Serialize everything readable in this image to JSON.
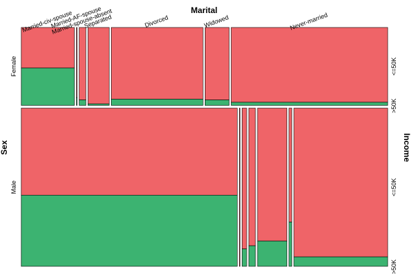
{
  "chart_data": {
    "type": "mosaic",
    "title": "Marital",
    "row_axis_label": "Sex",
    "side_axis_label": "Income",
    "categories": [
      "Married-civ-spouse",
      "Married-AF-spouse",
      "Married-spouse-absent",
      "Separated",
      "Divorced",
      "Widowed",
      "Never-married"
    ],
    "levels": [
      {
        "name": "<=50K",
        "color": "#ef6468"
      },
      {
        "name": ">50K",
        "color": "#3cb371"
      }
    ],
    "rows": [
      {
        "name": "Female",
        "share": 33,
        "marital_share": [
          15.0,
          0.2,
          1.9,
          6.0,
          25.9,
          6.8,
          44.2
        ],
        "high_income_share": [
          48,
          10,
          7,
          2,
          8,
          7,
          4
        ]
      },
      {
        "name": "Male",
        "share": 67,
        "marital_share": [
          61.0,
          0.2,
          1.3,
          1.9,
          8.3,
          0.8,
          26.5
        ],
        "high_income_share": [
          45,
          0,
          11,
          13,
          16,
          28,
          6
        ]
      }
    ]
  }
}
